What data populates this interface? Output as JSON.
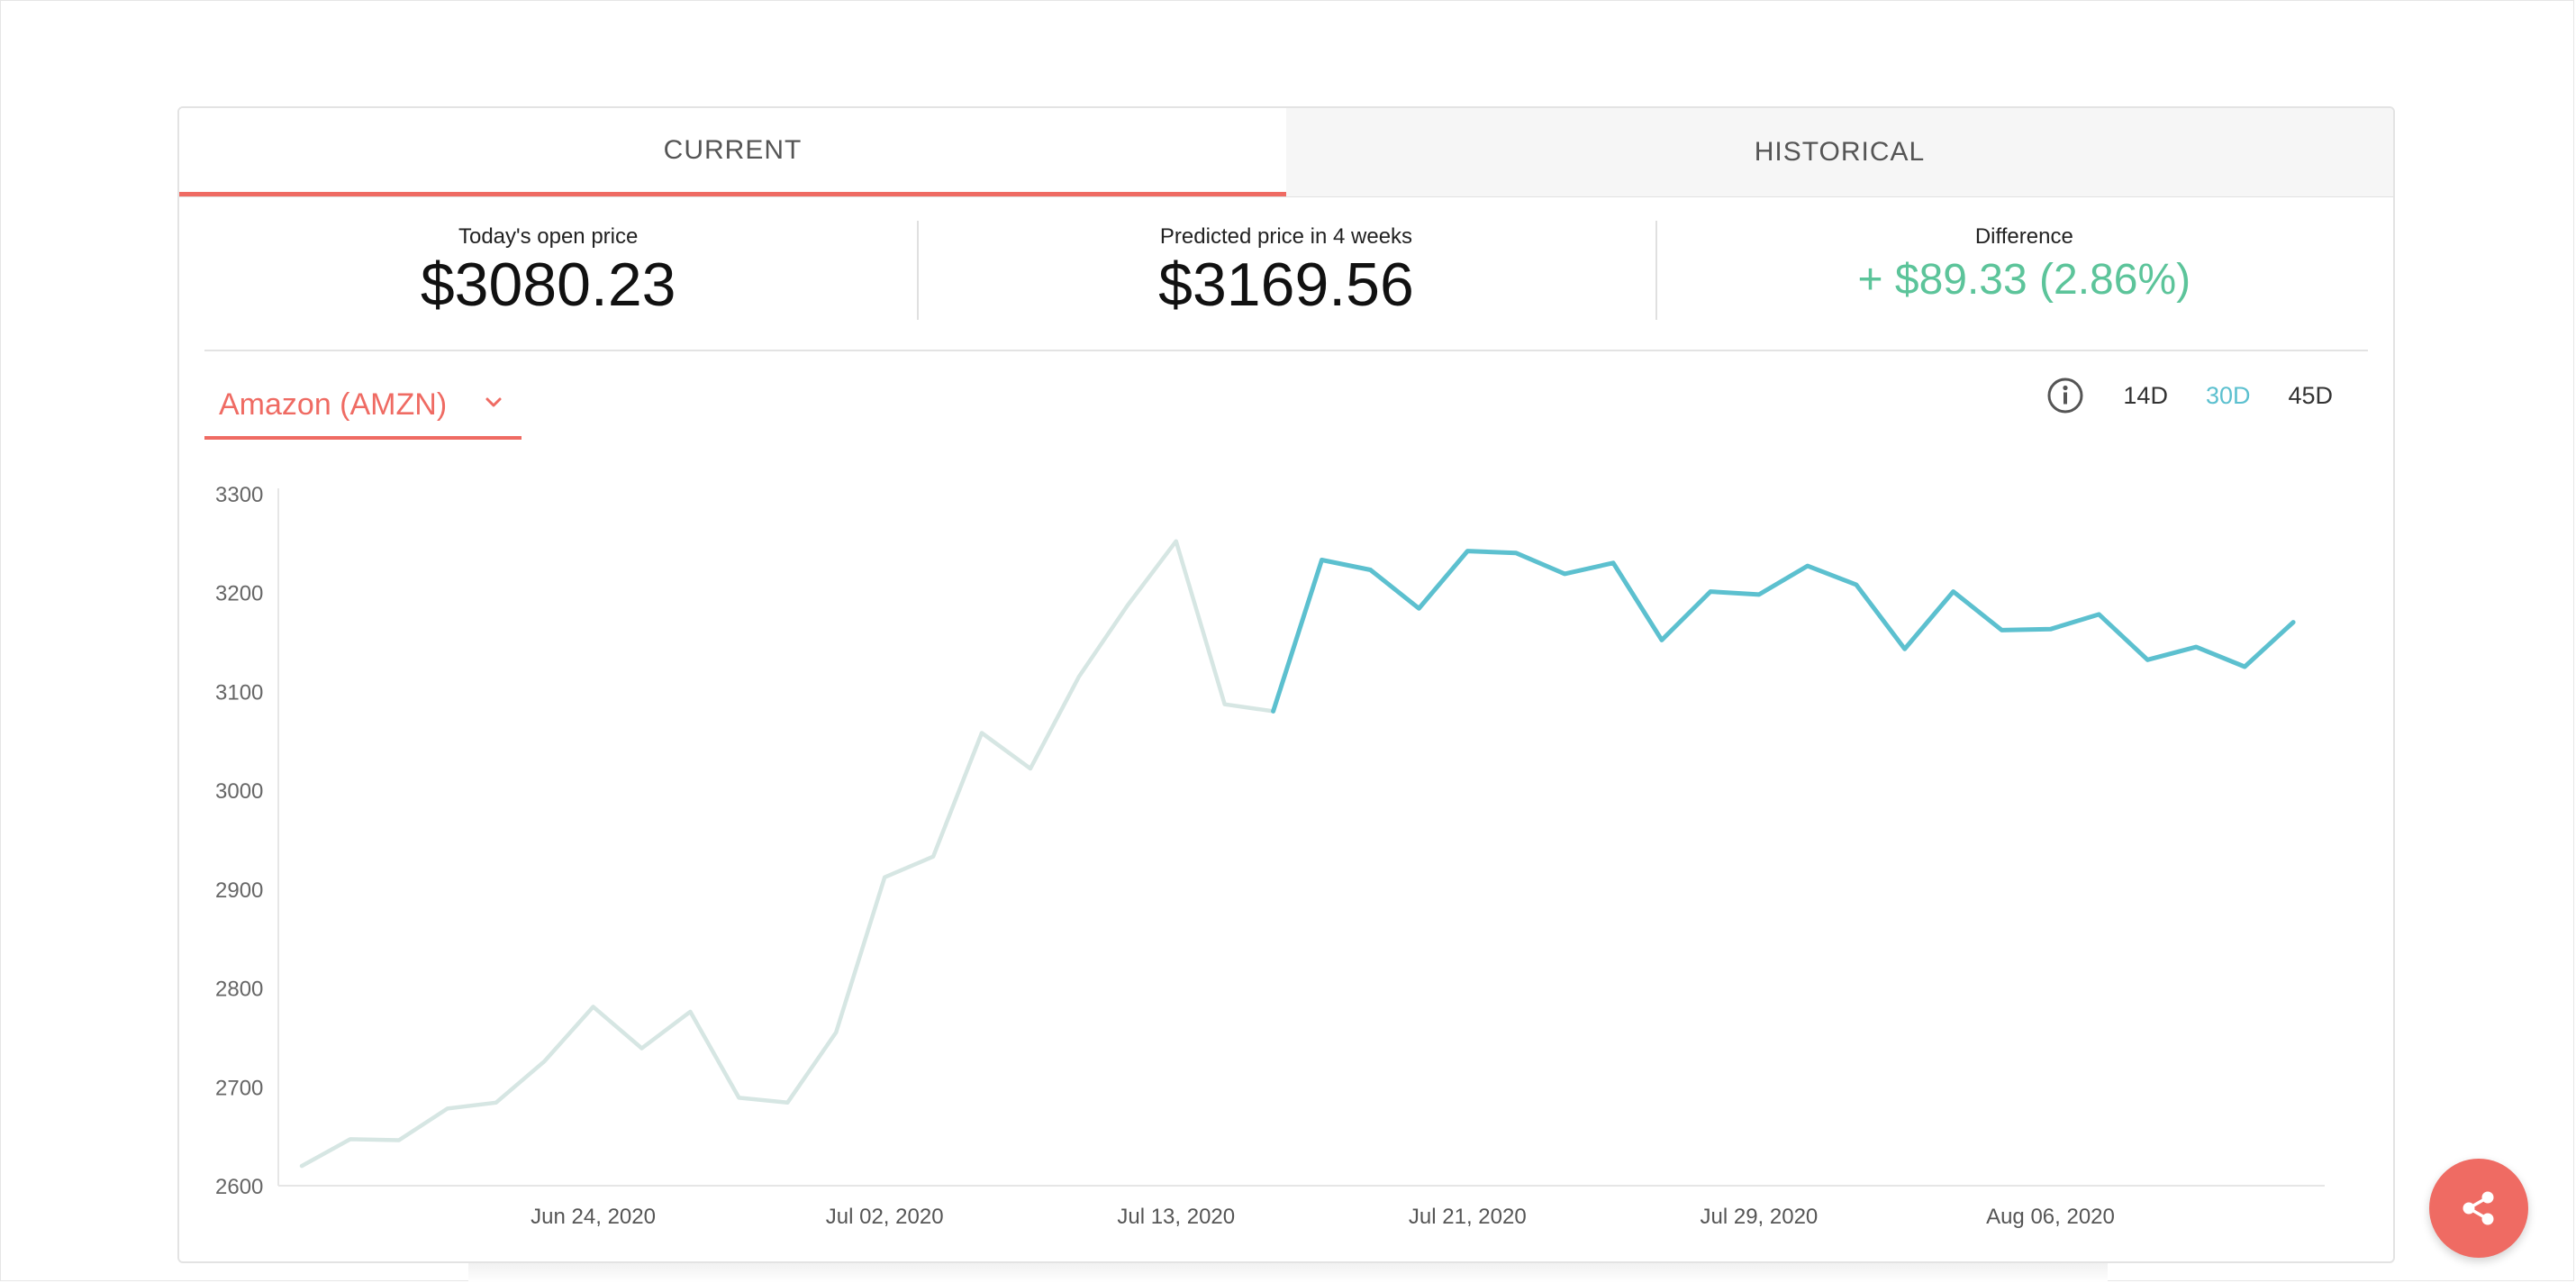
{
  "tabs": [
    {
      "label": "CURRENT",
      "active": true
    },
    {
      "label": "HISTORICAL",
      "active": false
    }
  ],
  "stats": {
    "open": {
      "label": "Today's open price",
      "value": "$3080.23"
    },
    "predicted": {
      "label": "Predicted price in 4 weeks",
      "value": "$3169.56"
    },
    "difference": {
      "label": "Difference",
      "value": "+ $89.33 (2.86%)"
    }
  },
  "ticker": {
    "label": "Amazon (AMZN)"
  },
  "range_buttons": [
    {
      "label": "14D",
      "active": false
    },
    {
      "label": "30D",
      "active": true
    },
    {
      "label": "45D",
      "active": false
    }
  ],
  "colors": {
    "accent": "#ef6b63",
    "prediction": "#5cc0cf",
    "history": "#d6e6e3",
    "positive": "#5cc49a"
  },
  "chart_data": {
    "type": "line",
    "title": "",
    "xlabel": "",
    "ylabel": "",
    "ylim": [
      2600,
      3300
    ],
    "yticks": [
      2600,
      2700,
      2800,
      2900,
      3000,
      3100,
      3200,
      3300
    ],
    "xtick_labels": [
      "Jun 24, 2020",
      "Jul 02, 2020",
      "Jul 13, 2020",
      "Jul 21, 2020",
      "Jul 29, 2020",
      "Aug 06, 2020"
    ],
    "xtick_index": [
      6,
      12,
      18,
      24,
      30,
      36
    ],
    "series": [
      {
        "role": "historical",
        "start_index": 0,
        "values": [
          2620,
          2647,
          2646,
          2678,
          2684,
          2726,
          2781,
          2739,
          2776,
          2689,
          2684,
          2755,
          2912,
          2933,
          3058,
          3022,
          3115,
          3187,
          3252,
          3087,
          3080
        ]
      },
      {
        "role": "predicted",
        "start_index": 20,
        "values": [
          3080,
          3233,
          3223,
          3184,
          3242,
          3240,
          3219,
          3230,
          3152,
          3201,
          3198,
          3227,
          3208,
          3143,
          3201,
          3162,
          3163,
          3178,
          3132,
          3145,
          3125,
          3170
        ]
      }
    ]
  }
}
